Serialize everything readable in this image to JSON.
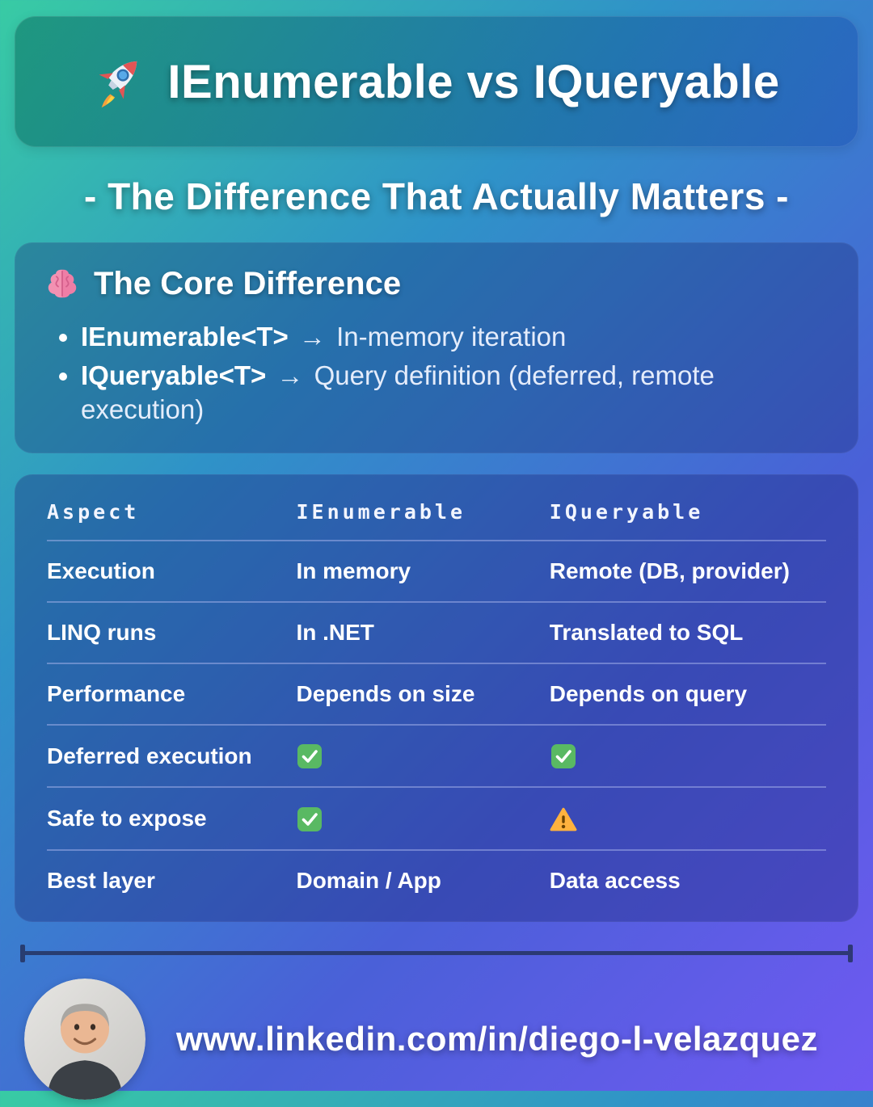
{
  "header": {
    "icon": "rocket-icon",
    "title": "IEnumerable vs IQueryable"
  },
  "subtitle": "- The Difference That Actually Matters -",
  "core": {
    "icon": "brain-icon",
    "heading": "The Core Difference",
    "bullets": [
      {
        "term": "IEnumerable<T>",
        "arrow": "→",
        "desc": "In-memory iteration"
      },
      {
        "term": "IQueryable<T>",
        "arrow": "→",
        "desc": "Query definition (deferred, remote execution)"
      }
    ]
  },
  "table": {
    "headers": [
      "Aspect",
      "IEnumerable",
      "IQueryable"
    ],
    "rows": [
      {
        "cells": [
          {
            "text": "Execution"
          },
          {
            "text": "In memory"
          },
          {
            "text": "Remote (DB, provider)"
          }
        ]
      },
      {
        "cells": [
          {
            "text": "LINQ runs"
          },
          {
            "text": "In .NET"
          },
          {
            "text": "Translated to SQL"
          }
        ]
      },
      {
        "cells": [
          {
            "text": "Performance"
          },
          {
            "text": "Depends on size"
          },
          {
            "text": "Depends on query"
          }
        ]
      },
      {
        "cells": [
          {
            "text": "Deferred execution"
          },
          {
            "icon": "check-icon"
          },
          {
            "icon": "check-icon"
          }
        ]
      },
      {
        "cells": [
          {
            "text": "Safe to expose"
          },
          {
            "icon": "check-icon"
          },
          {
            "icon": "warning-icon"
          }
        ]
      },
      {
        "cells": [
          {
            "text": "Best layer"
          },
          {
            "text": "Domain / App"
          },
          {
            "text": "Data access"
          }
        ]
      }
    ]
  },
  "footer": {
    "avatar": "avatar-photo",
    "url": "www.linkedin.com/in/diego-l-velazquez"
  },
  "colors": {
    "check_green": "#59b963",
    "warning_orange": "#ffb23e",
    "background_teal": "#38cba4",
    "background_purple": "#7059f2",
    "card_navy": "#1a2476"
  }
}
